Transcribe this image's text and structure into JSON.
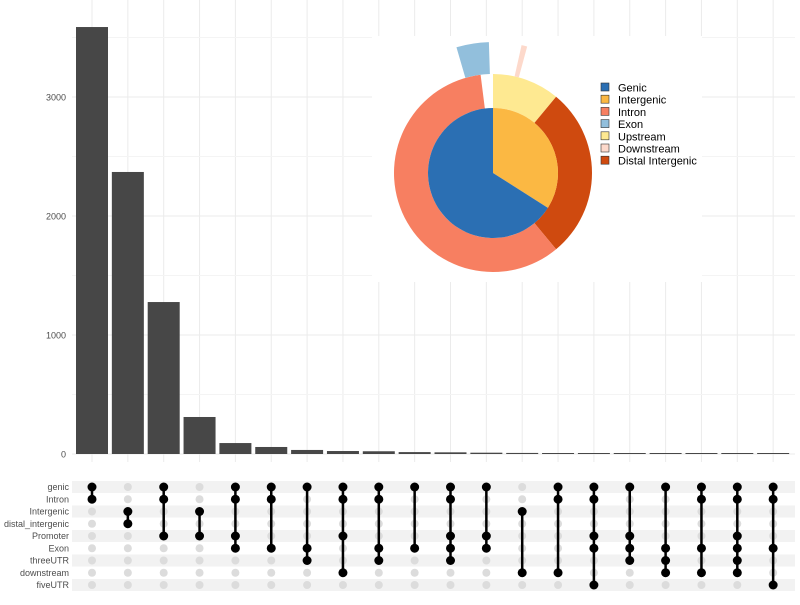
{
  "chart_data": [
    {
      "type": "bar",
      "title": "",
      "xlabel": "",
      "ylabel": "",
      "ylim": [
        0,
        3600
      ],
      "yticks": [
        0,
        1000,
        2000,
        3000
      ],
      "grid": true,
      "values": [
        3588,
        2370,
        1277,
        311,
        92,
        59,
        34,
        25,
        23,
        16,
        14,
        11,
        9,
        7,
        6,
        5,
        4,
        3,
        2,
        2
      ]
    },
    {
      "type": "upset-matrix",
      "sets": [
        "genic",
        "Intron",
        "Intergenic",
        "distal_intergenic",
        "Promoter",
        "Exon",
        "threeUTR",
        "downstream",
        "fiveUTR"
      ],
      "intersections": [
        [
          "genic",
          "Intron"
        ],
        [
          "Intergenic",
          "distal_intergenic"
        ],
        [
          "genic",
          "Intron",
          "Promoter"
        ],
        [
          "Intergenic",
          "Promoter"
        ],
        [
          "genic",
          "Intron",
          "Promoter",
          "Exon"
        ],
        [
          "genic",
          "Intron",
          "Exon"
        ],
        [
          "genic",
          "Exon",
          "threeUTR"
        ],
        [
          "genic",
          "Intron",
          "Promoter",
          "downstream"
        ],
        [
          "genic",
          "Intron",
          "Exon",
          "threeUTR"
        ],
        [
          "genic",
          "Exon"
        ],
        [
          "genic",
          "Intron",
          "Promoter",
          "Exon",
          "threeUTR"
        ],
        [
          "genic",
          "Promoter",
          "Exon"
        ],
        [
          "Intergenic",
          "downstream"
        ],
        [
          "genic",
          "Intron",
          "downstream"
        ],
        [
          "genic",
          "Intron",
          "Promoter",
          "Exon",
          "fiveUTR"
        ],
        [
          "genic",
          "Promoter",
          "Exon",
          "threeUTR"
        ],
        [
          "genic",
          "Exon",
          "threeUTR",
          "downstream"
        ],
        [
          "genic",
          "Intron",
          "Exon",
          "downstream"
        ],
        [
          "genic",
          "Intron",
          "Promoter",
          "Exon",
          "threeUTR",
          "downstream"
        ],
        [
          "genic",
          "Intron",
          "Exon",
          "fiveUTR"
        ]
      ]
    },
    {
      "type": "pie",
      "legend_position": "right",
      "legend": [
        "Genic",
        "Intergenic",
        "Intron",
        "Exon",
        "Upstream",
        "Downstream",
        "Distal Intergenic"
      ],
      "colors": {
        "Genic": "#2b6fb3",
        "Intergenic": "#fbb843",
        "Intron": "#f77f61",
        "Exon": "#92bfdc",
        "Upstream": "#fee991",
        "Downstream": "#fdd9cb",
        "Distal Intergenic": "#cf4a0f"
      },
      "inner_ring": [
        {
          "label": "Genic",
          "value": 66
        },
        {
          "label": "Intergenic",
          "value": 34
        }
      ],
      "outer_ring_clockwise_from_top": [
        {
          "label": "Upstream",
          "value": 11,
          "start": 0
        },
        {
          "label": "Distal Intergenic",
          "value": 28,
          "start": 11
        },
        {
          "label": "Intron",
          "value": 59,
          "start": 39
        },
        {
          "label": "Exon",
          "value": 4,
          "start": 95.5,
          "exploded": true
        },
        {
          "label": "Downstream",
          "value": 0.7,
          "start": 3.5,
          "exploded": true
        }
      ]
    }
  ]
}
